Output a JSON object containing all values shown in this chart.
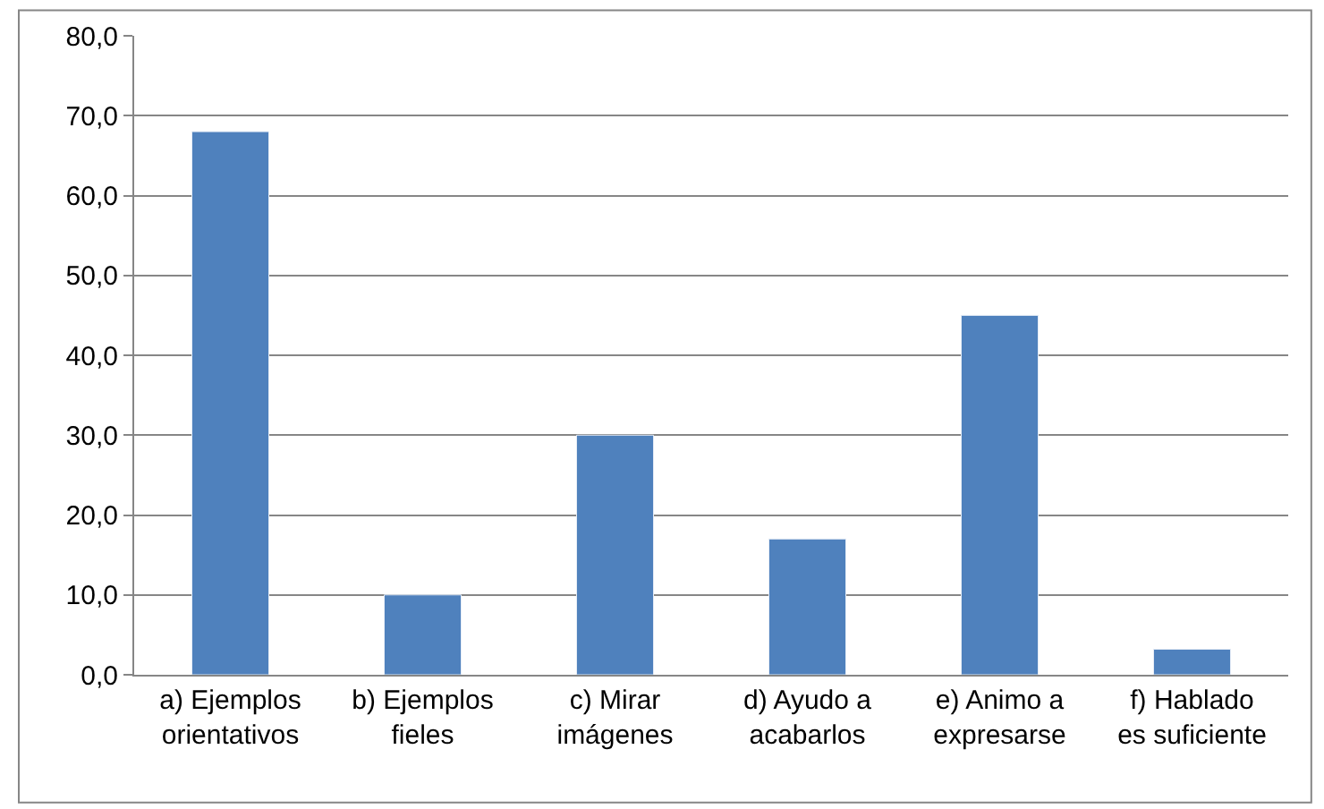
{
  "chart_data": {
    "type": "bar",
    "categories": [
      "a) Ejemplos orientativos",
      "b) Ejemplos fieles",
      "c) Mirar imágenes",
      "d) Ayudo a acabarlos",
      "e) Animo a expresarse",
      "f) Hablado es suficiente"
    ],
    "values": [
      68.0,
      10.0,
      30.0,
      17.0,
      45.0,
      3.2
    ],
    "color": "#4f81bd",
    "ylim": [
      0,
      80
    ],
    "yticks": [
      {
        "value": 0,
        "label": "0,0"
      },
      {
        "value": 10,
        "label": "10,0"
      },
      {
        "value": 20,
        "label": "20,0"
      },
      {
        "value": 30,
        "label": "30,0"
      },
      {
        "value": 40,
        "label": "40,0"
      },
      {
        "value": 50,
        "label": "50,0"
      },
      {
        "value": 60,
        "label": "60,0"
      },
      {
        "value": 70,
        "label": "70,0"
      },
      {
        "value": 80,
        "label": "80,0"
      }
    ],
    "grid": "y"
  }
}
